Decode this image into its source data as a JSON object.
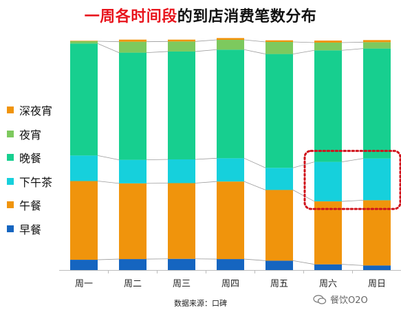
{
  "header": {
    "title_highlight": "一周各时间段",
    "title_rest": "的到店消费笔数分布"
  },
  "footer": {
    "source": "数据来源：口碑",
    "watermark": "餐饮O2O"
  },
  "chart_data": {
    "type": "bar",
    "stacked": true,
    "normalized_percent": true,
    "categories": [
      "周一",
      "周二",
      "周三",
      "周四",
      "周五",
      "周六",
      "周日"
    ],
    "series": [
      {
        "name": "早餐",
        "color": "#1565c0",
        "values": [
          4.5,
          4.8,
          4.9,
          4.8,
          4.1,
          2.5,
          2.0
        ]
      },
      {
        "name": "午餐",
        "color": "#f0940c",
        "values": [
          34.5,
          33.2,
          33.2,
          34.0,
          31.0,
          27.6,
          28.6
        ]
      },
      {
        "name": "下午茶",
        "color": "#16d0dc",
        "values": [
          11.2,
          10.3,
          10.4,
          10.2,
          9.7,
          17.3,
          18.3
        ]
      },
      {
        "name": "晚餐",
        "color": "#17cf8f",
        "values": [
          49.1,
          47.0,
          47.3,
          47.6,
          49.9,
          48.9,
          48.2
        ]
      },
      {
        "name": "夜宵",
        "color": "#7dc95e",
        "values": [
          1.0,
          4.8,
          4.4,
          4.3,
          5.3,
          3.4,
          2.8
        ]
      },
      {
        "name": "深夜宵",
        "color": "#f0940c",
        "values": [
          0.2,
          0.9,
          0.8,
          0.8,
          0.7,
          0.9,
          0.9
        ]
      }
    ],
    "legend_position": "left",
    "legend_order": [
      "深夜宵",
      "夜宵",
      "晚餐",
      "下午茶",
      "午餐",
      "早餐"
    ],
    "ylim": [
      0,
      100
    ],
    "grid": false,
    "connector_lines": true,
    "highlight": {
      "categories": [
        "周六",
        "周日"
      ],
      "series": "下午茶",
      "color": "#d0121b",
      "style": "dotted-rounded-box"
    }
  }
}
